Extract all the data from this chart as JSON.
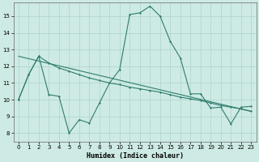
{
  "xlabel": "Humidex (Indice chaleur)",
  "background_color": "#ceeae4",
  "grid_color": "#aed4cc",
  "line_color": "#2e7d6e",
  "xlim": [
    -0.5,
    23.5
  ],
  "ylim": [
    7.5,
    15.8
  ],
  "yticks": [
    8,
    9,
    10,
    11,
    12,
    13,
    14,
    15
  ],
  "xticks": [
    0,
    1,
    2,
    3,
    4,
    5,
    6,
    7,
    8,
    9,
    10,
    11,
    12,
    13,
    14,
    15,
    16,
    17,
    18,
    19,
    20,
    21,
    22,
    23
  ],
  "x": [
    0,
    1,
    2,
    3,
    4,
    5,
    6,
    7,
    8,
    9,
    10,
    11,
    12,
    13,
    14,
    15,
    16,
    17,
    18,
    19,
    20,
    21,
    22,
    23
  ],
  "y_jagged": [
    10.0,
    11.5,
    12.6,
    10.3,
    10.2,
    8.0,
    8.8,
    8.6,
    9.8,
    11.0,
    11.8,
    15.1,
    15.2,
    15.6,
    15.0,
    13.5,
    12.5,
    10.35,
    10.35,
    9.5,
    9.55,
    8.55,
    9.55,
    9.6
  ],
  "y_smooth": [
    10.0,
    11.5,
    12.6,
    12.2,
    11.9,
    11.7,
    11.5,
    11.3,
    11.15,
    11.0,
    10.9,
    10.75,
    10.65,
    10.55,
    10.45,
    10.3,
    10.15,
    10.05,
    9.95,
    9.8,
    9.65,
    9.55,
    9.45,
    9.3
  ],
  "trend_x": [
    0,
    23
  ],
  "trend_y": [
    12.6,
    9.3
  ]
}
